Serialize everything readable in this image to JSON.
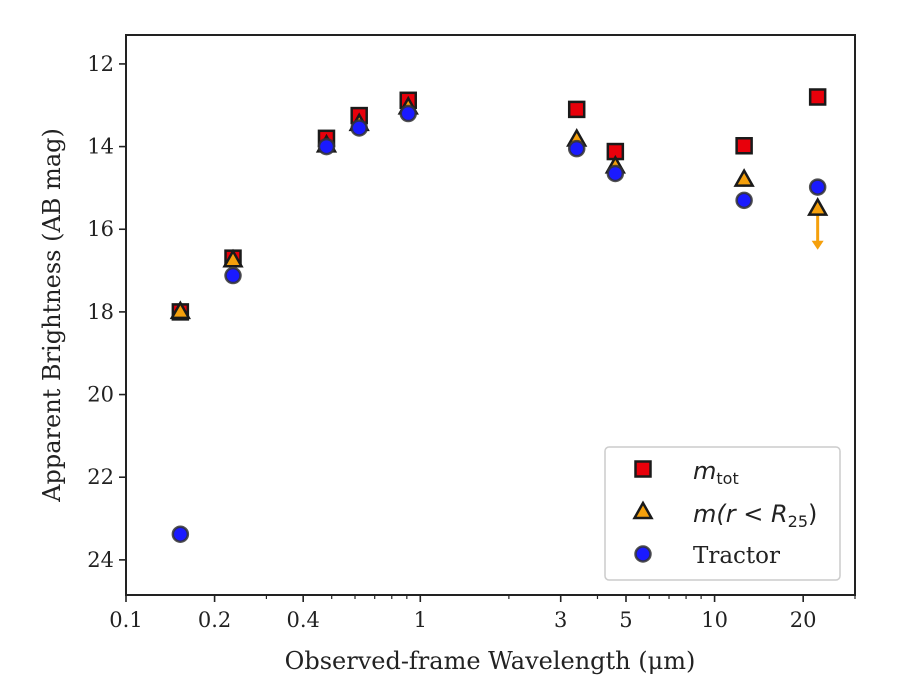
{
  "chart_data": {
    "type": "scatter",
    "xlabel": "Observed-frame Wavelength (μm)",
    "ylabel": "Apparent Brightness (AB mag)",
    "xscale": "log",
    "xlim": [
      0.1,
      30
    ],
    "ylim": [
      24.85,
      11.3
    ],
    "y_inverted": true,
    "x_ticks": [
      {
        "value": 0.1,
        "label": "0.1"
      },
      {
        "value": 0.2,
        "label": "0.2"
      },
      {
        "value": 0.4,
        "label": "0.4"
      },
      {
        "value": 1,
        "label": "1"
      },
      {
        "value": 3,
        "label": "3"
      },
      {
        "value": 5,
        "label": "5"
      },
      {
        "value": 10,
        "label": "10"
      },
      {
        "value": 20,
        "label": "20"
      }
    ],
    "x_minor_ticks": [
      0.3,
      0.5,
      0.6,
      0.7,
      0.8,
      0.9,
      2,
      4,
      6,
      7,
      8,
      9,
      30
    ],
    "y_ticks": [
      {
        "value": 12,
        "label": "12"
      },
      {
        "value": 14,
        "label": "14"
      },
      {
        "value": 16,
        "label": "16"
      },
      {
        "value": 18,
        "label": "18"
      },
      {
        "value": 20,
        "label": "20"
      },
      {
        "value": 22,
        "label": "22"
      },
      {
        "value": 24,
        "label": "24"
      }
    ],
    "grid": false,
    "legend_position": "bottom-right",
    "series": [
      {
        "label_main": "m",
        "label_sub": "tot",
        "marker": "square",
        "color": "#e8000b",
        "error_color": "#e8000b",
        "points": [
          {
            "x": 0.153,
            "y": 18.0
          },
          {
            "x": 0.231,
            "y": 16.7
          },
          {
            "x": 0.48,
            "y": 13.8
          },
          {
            "x": 0.62,
            "y": 13.25
          },
          {
            "x": 0.91,
            "y": 12.88
          },
          {
            "x": 3.4,
            "y": 13.1
          },
          {
            "x": 4.6,
            "y": 14.12
          },
          {
            "x": 12.6,
            "y": 13.98
          },
          {
            "x": 22.4,
            "y": 12.8
          }
        ]
      },
      {
        "label_main": "m(r < R",
        "label_sub": "25",
        "label_end": ")",
        "marker": "triangle",
        "color": "#f5a00c",
        "error_color": "#f5a00c",
        "points": [
          {
            "x": 0.153,
            "y": 18.0
          },
          {
            "x": 0.231,
            "y": 16.75
          },
          {
            "x": 0.48,
            "y": 13.97
          },
          {
            "x": 0.62,
            "y": 13.45
          },
          {
            "x": 0.91,
            "y": 13.05
          },
          {
            "x": 3.4,
            "y": 13.83
          },
          {
            "x": 4.6,
            "y": 14.48
          },
          {
            "x": 12.6,
            "y": 14.8
          },
          {
            "x": 22.4,
            "y": 15.5,
            "upper_limit_to": 16.4
          }
        ]
      },
      {
        "label_main": "Tractor",
        "marker": "circle",
        "color": "#1a1aff",
        "error_color": "#1a1aff",
        "points": [
          {
            "x": 0.153,
            "y": 23.38
          },
          {
            "x": 0.231,
            "y": 17.12
          },
          {
            "x": 0.48,
            "y": 14.0
          },
          {
            "x": 0.62,
            "y": 13.55
          },
          {
            "x": 0.91,
            "y": 13.2
          },
          {
            "x": 3.4,
            "y": 14.05
          },
          {
            "x": 4.6,
            "y": 14.65
          },
          {
            "x": 12.6,
            "y": 15.3
          },
          {
            "x": 22.4,
            "y": 14.98
          }
        ]
      }
    ]
  }
}
